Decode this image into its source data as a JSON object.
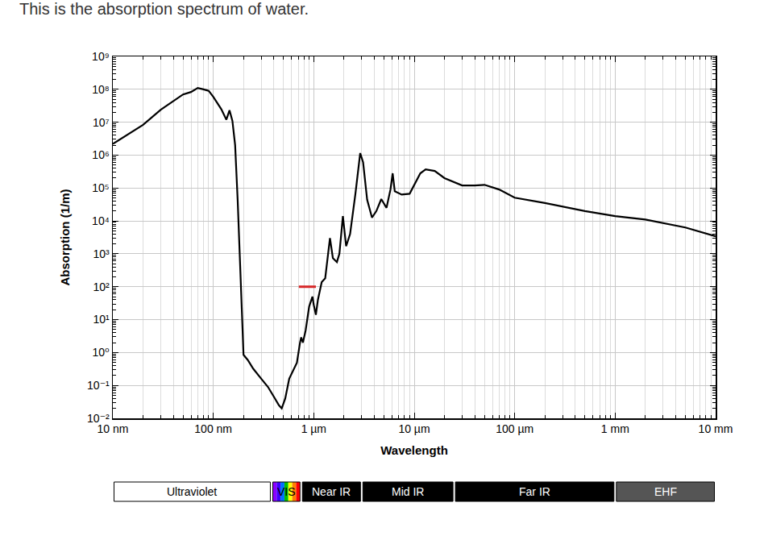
{
  "chart_data": {
    "type": "line",
    "caption": "This is the absorption spectrum of water.",
    "x_label": "Wavelength",
    "y_label": "Absorption (1/m)",
    "log": true,
    "grid": true,
    "color": "#000000",
    "x": [
      10,
      20,
      30,
      50,
      60,
      70,
      80,
      90,
      100,
      120,
      135,
      145,
      155,
      165,
      175,
      185,
      200,
      220,
      250,
      300,
      350,
      400,
      450,
      480,
      520,
      570,
      620,
      680,
      730,
      750,
      780,
      830,
      900,
      970,
      1000,
      1050,
      1100,
      1200,
      1300,
      1450,
      1550,
      1700,
      1800,
      1950,
      2100,
      2300,
      2600,
      2900,
      3100,
      3400,
      3800,
      4200,
      4700,
      5300,
      5800,
      6100,
      6400,
      7500,
      9000,
      10000,
      11500,
      13000,
      16000,
      20000,
      30000,
      40000,
      50000,
      70000,
      100000,
      200000,
      500000,
      1000000,
      2000000,
      5000000,
      7000000,
      10000000
    ],
    "values": [
      2200000,
      8300000,
      24000000,
      70000000,
      83000000,
      110000000,
      100000000,
      90000000,
      59000000,
      25000000,
      12000000,
      23000000,
      11000000,
      2000000,
      40000,
      400,
      0.85,
      0.6,
      0.32,
      0.16,
      0.09,
      0.046,
      0.025,
      0.02,
      0.04,
      0.16,
      0.28,
      0.49,
      2,
      2.9,
      2,
      4.7,
      25,
      50,
      28,
      14,
      40,
      138,
      180,
      3000,
      740,
      560,
      1000,
      14000,
      1700,
      4000,
      68000,
      1150000,
      600000,
      44000,
      12600,
      20000,
      46000,
      25000,
      90000,
      280000,
      80000,
      63000,
      67000,
      120000,
      280000,
      370000,
      330000,
      200000,
      120000,
      120000,
      125000,
      90000,
      51000,
      35000,
      20000,
      14000,
      11000,
      6300,
      4600,
      3400
    ],
    "xlim": [
      10,
      10000000
    ],
    "ylim": [
      0.01,
      1000000000
    ],
    "xticks": [
      {
        "value": 10,
        "label": "10 nm"
      },
      {
        "value": 100,
        "label": "100 nm"
      },
      {
        "value": 1000,
        "label": "1 µm"
      },
      {
        "value": 10000,
        "label": "10 µm"
      },
      {
        "value": 100000,
        "label": "100 µm"
      },
      {
        "value": 1000000,
        "label": "1 mm"
      },
      {
        "value": 10000000,
        "label": "10 mm"
      }
    ],
    "yticks": [
      {
        "value": 0.01,
        "label": "10⁻²"
      },
      {
        "value": 0.1,
        "label": "10⁻¹"
      },
      {
        "value": 1,
        "label": "10⁰"
      },
      {
        "value": 10,
        "label": "10¹"
      },
      {
        "value": 100,
        "label": "10²"
      },
      {
        "value": 1000,
        "label": "10³"
      },
      {
        "value": 10000,
        "label": "10⁴"
      },
      {
        "value": 100000,
        "label": "10⁵"
      },
      {
        "value": 1000000,
        "label": "10⁶"
      },
      {
        "value": 10000000,
        "label": "10⁷"
      },
      {
        "value": 100000000,
        "label": "10⁸"
      },
      {
        "value": 1000000000,
        "label": "10⁹"
      }
    ],
    "bands": [
      {
        "label": "Ultraviolet",
        "from": 10,
        "to": 380,
        "color": "#ffffff"
      },
      {
        "label": "VIS",
        "from": 380,
        "to": 750,
        "colors": [
          "#8b00ff",
          "#3f00ff",
          "#0070ff",
          "#00c000",
          "#ffff00",
          "#ff8000",
          "#ff0000"
        ]
      },
      {
        "label": "Near IR",
        "from": 750,
        "to": 3000,
        "color": "#000000"
      },
      {
        "label": "Mid IR",
        "from": 3000,
        "to": 25000,
        "color": "#000000"
      },
      {
        "label": "Far IR",
        "from": 25000,
        "to": 1000000,
        "color": "#000000"
      },
      {
        "label": "EHF",
        "from": 1000000,
        "to": 10000000,
        "color": "#555555"
      }
    ],
    "highlight": {
      "x": [
        710,
        1050
      ],
      "y": 100,
      "color": "#d62728"
    }
  }
}
